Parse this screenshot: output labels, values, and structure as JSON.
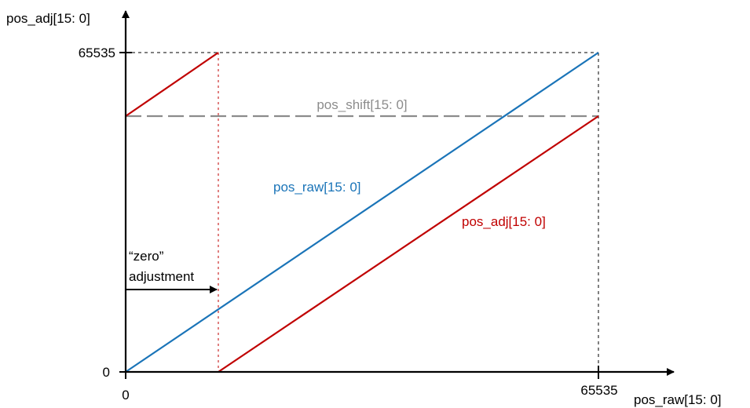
{
  "axes": {
    "y_label": "pos_adj[15: 0]",
    "x_label": "pos_raw[15: 0]",
    "y_tick_max": "65535",
    "y_tick_zero": "0",
    "x_tick_zero": "0",
    "x_tick_max": "65535"
  },
  "labels": {
    "pos_shift": "pos_shift[15: 0]",
    "pos_raw": "pos_raw[15: 0]",
    "pos_adj": "pos_adj[15: 0]",
    "zero_line1": "“zero”",
    "zero_line2": "adjustment"
  },
  "colors": {
    "pos_raw": "#1a74b8",
    "pos_adj": "#c00000",
    "pos_shift": "#8c8c8c",
    "axis": "#000000"
  }
}
